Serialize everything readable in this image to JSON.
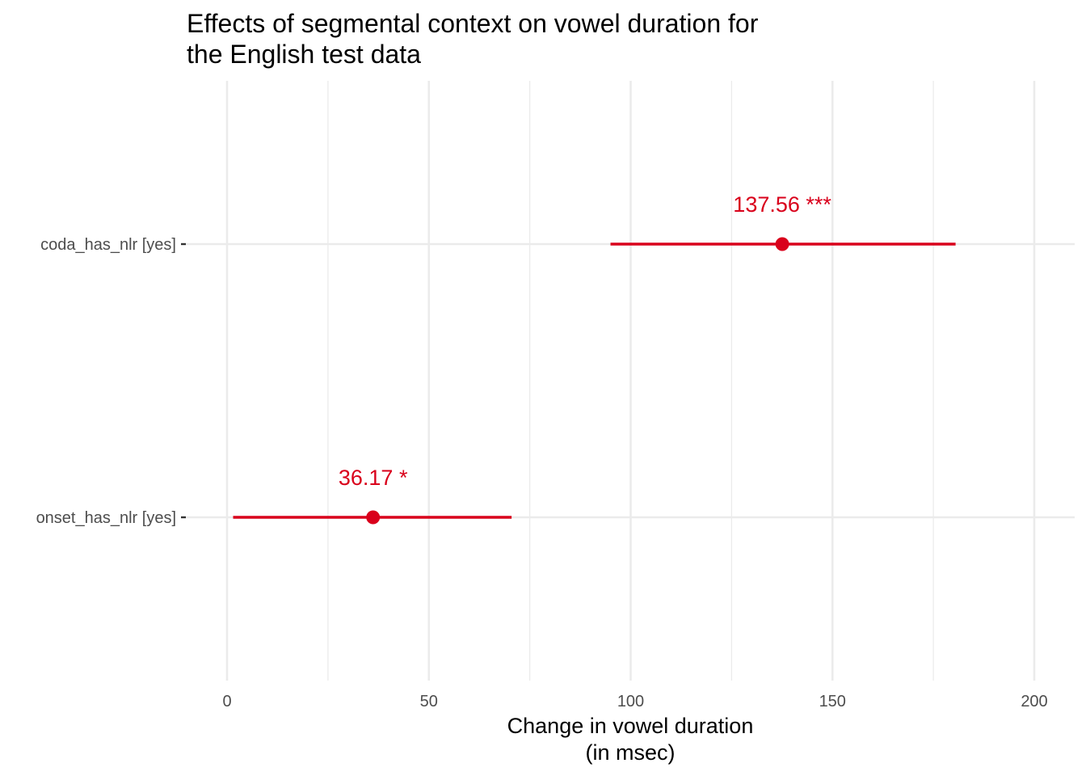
{
  "chart_data": {
    "type": "scatter",
    "title_lines": [
      "Effects of segmental context on vowel duration for",
      "the English test data"
    ],
    "xlabel_lines": [
      "Change in vowel duration",
      "(in msec)"
    ],
    "ylabel": "",
    "xlim": [
      0,
      210
    ],
    "x_ticks": [
      0,
      50,
      100,
      150,
      200
    ],
    "x_minor_ticks": [
      25,
      75,
      125,
      175
    ],
    "categories": [
      "coda_has_nlr [yes]",
      "onset_has_nlr [yes]"
    ],
    "points": [
      {
        "term": "coda_has_nlr [yes]",
        "estimate": 137.56,
        "ci_low": 95,
        "ci_high": 180.5,
        "label": "137.56 ***"
      },
      {
        "term": "onset_has_nlr [yes]",
        "estimate": 36.17,
        "ci_low": 1.5,
        "ci_high": 70.5,
        "label": "36.17 *"
      }
    ],
    "grid": true,
    "legend": "none",
    "colors": {
      "point": "#d9001b",
      "grid": "#ebebeb",
      "text": "#000000",
      "tick_text": "#4d4d4d"
    }
  }
}
